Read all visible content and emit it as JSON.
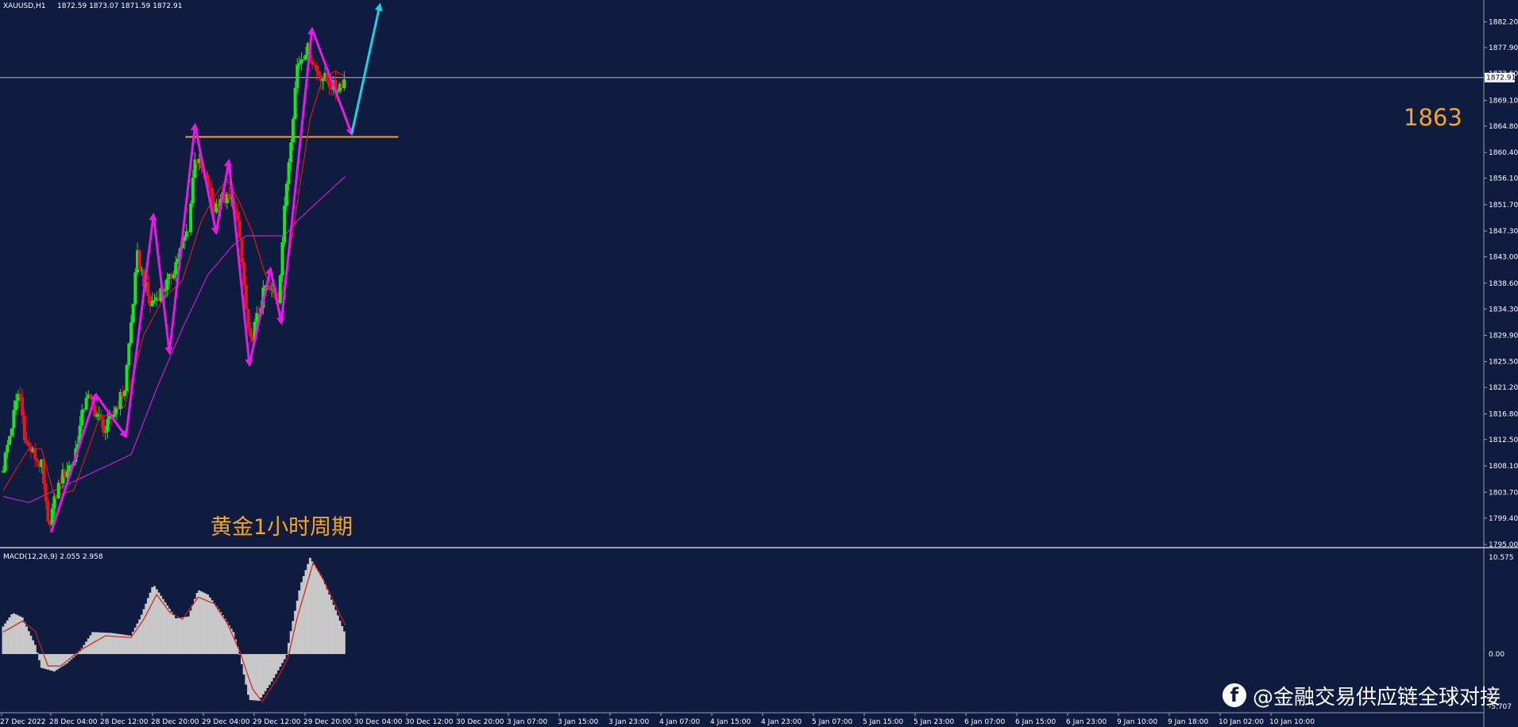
{
  "header": {
    "symbol_timeframe": "XAUUSD,H1",
    "ohlc": "1872.59 1873.07 1871.59 1872.91"
  },
  "current_price_label": "1872.91",
  "macd_label": "MACD(12,26,9) 2.055 2.958",
  "annotations": {
    "title_cn": "黄金1小时周期",
    "level_label": "1863"
  },
  "watermark": {
    "icon": "facebook-icon",
    "text": "@金融交易供应链全球对接"
  },
  "colors": {
    "background": "#0f1b3f",
    "bull_candle": "#19e619",
    "bear_candle": "#e6141e",
    "zigzag": "#e619e6",
    "projection_arrow": "#19d2e6",
    "level_line": "#f5a623",
    "ma_fast": "#d21e1e",
    "ma_slow": "#c81ed2",
    "macd_hist": "#c8c8c8",
    "macd_signal": "#d21e1e"
  },
  "chart_data": [
    {
      "type": "candlestick",
      "title": "XAUUSD,H1",
      "ylim": [
        1795.0,
        1884.0
      ],
      "y_ticks": [
        "1882.20",
        "1877.90",
        "1873.60",
        "1869.10",
        "1864.80",
        "1860.40",
        "1856.10",
        "1851.70",
        "1847.30",
        "1843.00",
        "1838.60",
        "1834.30",
        "1829.90",
        "1825.50",
        "1821.20",
        "1816.80",
        "1812.50",
        "1808.10",
        "1803.70",
        "1799.40",
        "1795.00"
      ],
      "x_ticks": [
        "27 Dec 2022",
        "28 Dec 04:00",
        "28 Dec 12:00",
        "28 Dec 20:00",
        "29 Dec 04:00",
        "29 Dec 12:00",
        "29 Dec 20:00",
        "30 Dec 04:00",
        "30 Dec 12:00",
        "30 Dec 20:00",
        "3 Jan 07:00",
        "3 Jan 15:00",
        "3 Jan 23:00",
        "4 Jan 07:00",
        "4 Jan 15:00",
        "4 Jan 23:00",
        "5 Jan 07:00",
        "5 Jan 15:00",
        "5 Jan 23:00",
        "6 Jan 07:00",
        "6 Jan 15:00",
        "6 Jan 23:00",
        "9 Jan 10:00",
        "9 Jan 18:00",
        "10 Jan 02:00",
        "10 Jan 10:00"
      ],
      "close_path": [
        {
          "x": 0,
          "y": 1808
        },
        {
          "x": 2.5,
          "y": 1821
        },
        {
          "x": 3.5,
          "y": 1812
        },
        {
          "x": 6,
          "y": 1808
        },
        {
          "x": 7,
          "y": 1798
        },
        {
          "x": 9,
          "y": 1806
        },
        {
          "x": 11,
          "y": 1809
        },
        {
          "x": 13,
          "y": 1820
        },
        {
          "x": 16,
          "y": 1814
        },
        {
          "x": 19,
          "y": 1821
        },
        {
          "x": 21,
          "y": 1843
        },
        {
          "x": 23,
          "y": 1835
        },
        {
          "x": 26,
          "y": 1839
        },
        {
          "x": 29,
          "y": 1848
        },
        {
          "x": 30,
          "y": 1860
        },
        {
          "x": 32,
          "y": 1855
        },
        {
          "x": 33,
          "y": 1851
        },
        {
          "x": 34,
          "y": 1853
        },
        {
          "x": 36,
          "y": 1852
        },
        {
          "x": 37,
          "y": 1846
        },
        {
          "x": 38.5,
          "y": 1828
        },
        {
          "x": 40,
          "y": 1834
        },
        {
          "x": 41,
          "y": 1838
        },
        {
          "x": 43,
          "y": 1836
        },
        {
          "x": 44.3,
          "y": 1855
        },
        {
          "x": 46,
          "y": 1875
        },
        {
          "x": 47.5,
          "y": 1878
        },
        {
          "x": 49,
          "y": 1874
        },
        {
          "x": 52,
          "y": 1871
        },
        {
          "x": 53.6,
          "y": 1872.91
        }
      ],
      "moving_averages": [
        {
          "name": "fast",
          "points": [
            {
              "x": 0,
              "y": 1804
            },
            {
              "x": 4,
              "y": 1811
            },
            {
              "x": 6,
              "y": 1811
            },
            {
              "x": 8,
              "y": 1803
            },
            {
              "x": 11,
              "y": 1804
            },
            {
              "x": 15,
              "y": 1816
            },
            {
              "x": 19,
              "y": 1818
            },
            {
              "x": 22,
              "y": 1830
            },
            {
              "x": 25,
              "y": 1836
            },
            {
              "x": 28,
              "y": 1839
            },
            {
              "x": 31,
              "y": 1849
            },
            {
              "x": 33,
              "y": 1853
            },
            {
              "x": 35,
              "y": 1856
            },
            {
              "x": 37,
              "y": 1852
            },
            {
              "x": 39,
              "y": 1847
            },
            {
              "x": 41,
              "y": 1840
            },
            {
              "x": 43.5,
              "y": 1836
            },
            {
              "x": 45,
              "y": 1845
            },
            {
              "x": 48,
              "y": 1866
            },
            {
              "x": 50,
              "y": 1873
            },
            {
              "x": 52,
              "y": 1874
            },
            {
              "x": 53.6,
              "y": 1873
            }
          ]
        },
        {
          "name": "slow",
          "points": [
            {
              "x": 0,
              "y": 1803
            },
            {
              "x": 4,
              "y": 1802
            },
            {
              "x": 8,
              "y": 1804
            },
            {
              "x": 12,
              "y": 1806
            },
            {
              "x": 16,
              "y": 1808
            },
            {
              "x": 20,
              "y": 1810
            },
            {
              "x": 24,
              "y": 1821
            },
            {
              "x": 28,
              "y": 1831
            },
            {
              "x": 32,
              "y": 1840
            },
            {
              "x": 36,
              "y": 1845
            },
            {
              "x": 38,
              "y": 1846.5
            },
            {
              "x": 42,
              "y": 1846.5
            },
            {
              "x": 44,
              "y": 1846.5
            },
            {
              "x": 46,
              "y": 1849
            },
            {
              "x": 50,
              "y": 1853
            },
            {
              "x": 53.6,
              "y": 1856.5
            }
          ]
        }
      ],
      "zigzag": [
        {
          "x": 7.5,
          "y": 1797
        },
        {
          "x": 14.5,
          "y": 1820
        },
        {
          "x": 19.2,
          "y": 1813
        },
        {
          "x": 23.5,
          "y": 1850
        },
        {
          "x": 26,
          "y": 1827
        },
        {
          "x": 30,
          "y": 1865
        },
        {
          "x": 33.3,
          "y": 1847
        },
        {
          "x": 35.3,
          "y": 1859
        },
        {
          "x": 38.5,
          "y": 1825
        },
        {
          "x": 41.8,
          "y": 1841
        },
        {
          "x": 43.5,
          "y": 1832
        },
        {
          "x": 48.3,
          "y": 1881
        },
        {
          "x": 54.5,
          "y": 1863.5
        }
      ],
      "projection_arrow": [
        {
          "x": 54.5,
          "y": 1863.5
        },
        {
          "x": 58.9,
          "y": 1885
        }
      ],
      "level_line": {
        "y": 1863,
        "x_from": 28.5,
        "x_to": 61.8
      },
      "current_price": 1872.91,
      "grid": false
    },
    {
      "type": "bar",
      "title": "MACD(12,26,9)",
      "ylim": [
        -5.707,
        10.575
      ],
      "y_ticks": [
        "10.575",
        "0.00",
        "-5.707"
      ],
      "histogram_path": [
        {
          "x": 0,
          "y": 3.0
        },
        {
          "x": 1.5,
          "y": 4.5
        },
        {
          "x": 3,
          "y": 4.0
        },
        {
          "x": 5,
          "y": 1.0
        },
        {
          "x": 6,
          "y": -1.5
        },
        {
          "x": 8,
          "y": -1.9
        },
        {
          "x": 10,
          "y": -1.0
        },
        {
          "x": 12,
          "y": 0.3
        },
        {
          "x": 14,
          "y": 2.4
        },
        {
          "x": 17,
          "y": 2.3
        },
        {
          "x": 20,
          "y": 2.0
        },
        {
          "x": 21.5,
          "y": 4.0
        },
        {
          "x": 23.5,
          "y": 7.6
        },
        {
          "x": 25,
          "y": 6.0
        },
        {
          "x": 27,
          "y": 3.9
        },
        {
          "x": 29,
          "y": 4.1
        },
        {
          "x": 30.5,
          "y": 7.0
        },
        {
          "x": 32,
          "y": 6.5
        },
        {
          "x": 34,
          "y": 4.6
        },
        {
          "x": 36,
          "y": 2.4
        },
        {
          "x": 37,
          "y": 0
        },
        {
          "x": 38.5,
          "y": -5.0
        },
        {
          "x": 40,
          "y": -5.1
        },
        {
          "x": 42,
          "y": -3.0
        },
        {
          "x": 44.3,
          "y": -0.2
        },
        {
          "x": 45,
          "y": 2.5
        },
        {
          "x": 46.5,
          "y": 7.5
        },
        {
          "x": 48,
          "y": 10.5
        },
        {
          "x": 50,
          "y": 8.2
        },
        {
          "x": 52,
          "y": 4.8
        },
        {
          "x": 53.6,
          "y": 2.0
        }
      ],
      "signal_path": [
        {
          "x": 0,
          "y": 2.4
        },
        {
          "x": 3,
          "y": 3.6
        },
        {
          "x": 5,
          "y": 2.5
        },
        {
          "x": 7,
          "y": -1.3
        },
        {
          "x": 9,
          "y": -1.3
        },
        {
          "x": 12,
          "y": 0.4
        },
        {
          "x": 16,
          "y": 2.0
        },
        {
          "x": 20,
          "y": 1.8
        },
        {
          "x": 22,
          "y": 3.8
        },
        {
          "x": 24,
          "y": 6.5
        },
        {
          "x": 26,
          "y": 4.6
        },
        {
          "x": 28,
          "y": 3.8
        },
        {
          "x": 30.5,
          "y": 6.2
        },
        {
          "x": 33,
          "y": 5.5
        },
        {
          "x": 35,
          "y": 3.4
        },
        {
          "x": 37,
          "y": 0.3
        },
        {
          "x": 39,
          "y": -3.8
        },
        {
          "x": 40.5,
          "y": -5.2
        },
        {
          "x": 43,
          "y": -2.5
        },
        {
          "x": 44.5,
          "y": -0.5
        },
        {
          "x": 46,
          "y": 4.0
        },
        {
          "x": 48.5,
          "y": 10.0
        },
        {
          "x": 50,
          "y": 8.2
        },
        {
          "x": 52,
          "y": 5.3
        },
        {
          "x": 53.6,
          "y": 3.0
        }
      ]
    }
  ]
}
